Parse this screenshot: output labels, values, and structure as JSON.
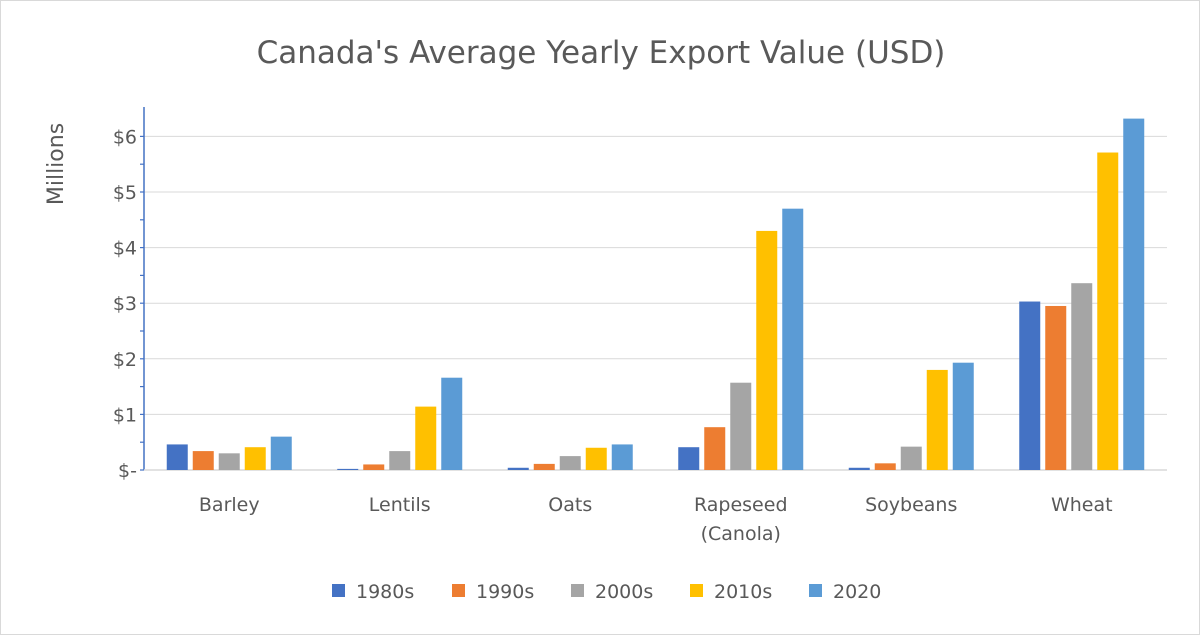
{
  "chart_data": {
    "type": "bar",
    "title": "Canada's Average Yearly Export Value (USD)",
    "ylabel": "Millions",
    "xlabel": "",
    "ylim": [
      0,
      6.3
    ],
    "y_ticks": [
      0,
      1,
      2,
      3,
      4,
      5,
      6
    ],
    "y_tick_labels": [
      "$-",
      "$1",
      "$2",
      "$3",
      "$4",
      "$5",
      "$6"
    ],
    "grid": true,
    "legend_position": "bottom",
    "categories": [
      [
        "Barley"
      ],
      [
        "Lentils"
      ],
      [
        "Oats"
      ],
      [
        "Rapeseed",
        "(Canola)"
      ],
      [
        "Soybeans"
      ],
      [
        "Wheat"
      ]
    ],
    "series": [
      {
        "name": "1980s",
        "color": "#4472c4",
        "values": [
          0.46,
          0.02,
          0.04,
          0.41,
          0.04,
          3.03
        ]
      },
      {
        "name": "1990s",
        "color": "#ed7d31",
        "values": [
          0.34,
          0.1,
          0.11,
          0.77,
          0.12,
          2.95
        ]
      },
      {
        "name": "2000s",
        "color": "#a5a5a5",
        "values": [
          0.3,
          0.34,
          0.25,
          1.57,
          0.42,
          3.36
        ]
      },
      {
        "name": "2010s",
        "color": "#ffc000",
        "values": [
          0.41,
          1.14,
          0.4,
          4.3,
          1.8,
          5.71
        ]
      },
      {
        "name": "2020",
        "color": "#5b9bd5",
        "values": [
          0.6,
          1.66,
          0.46,
          4.7,
          1.93,
          6.32
        ]
      }
    ]
  }
}
